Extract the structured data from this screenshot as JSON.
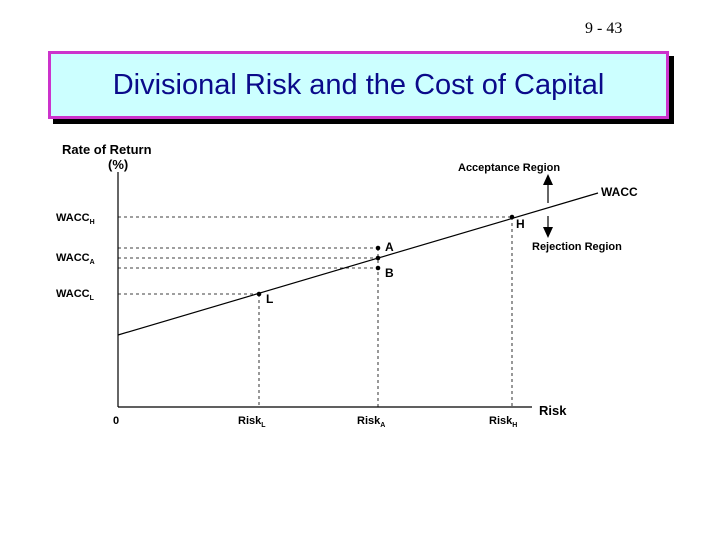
{
  "slide": {
    "number": "9 - 43",
    "title": "Divisional Risk and the Cost of Capital"
  },
  "diagram": {
    "y_axis_label_line1": "Rate of Return",
    "y_axis_label_line2": "(%)",
    "x_axis_label": "Risk",
    "origin_label": "0",
    "line_label": "WACC",
    "acceptance_region": "Acceptance Region",
    "rejection_region": "Rejection Region",
    "y_labels": {
      "wacc_h": {
        "main": "WACC",
        "sub": "H"
      },
      "wacc_a": {
        "main": "WACC",
        "sub": "A"
      },
      "wacc_l": {
        "main": "WACC",
        "sub": "L"
      }
    },
    "x_labels": {
      "risk_l": {
        "main": "Risk",
        "sub": "L"
      },
      "risk_a": {
        "main": "Risk",
        "sub": "A"
      },
      "risk_h": {
        "main": "Risk",
        "sub": "H"
      }
    },
    "points": {
      "h": "H",
      "a": "A",
      "b": "B",
      "l": "L"
    }
  }
}
